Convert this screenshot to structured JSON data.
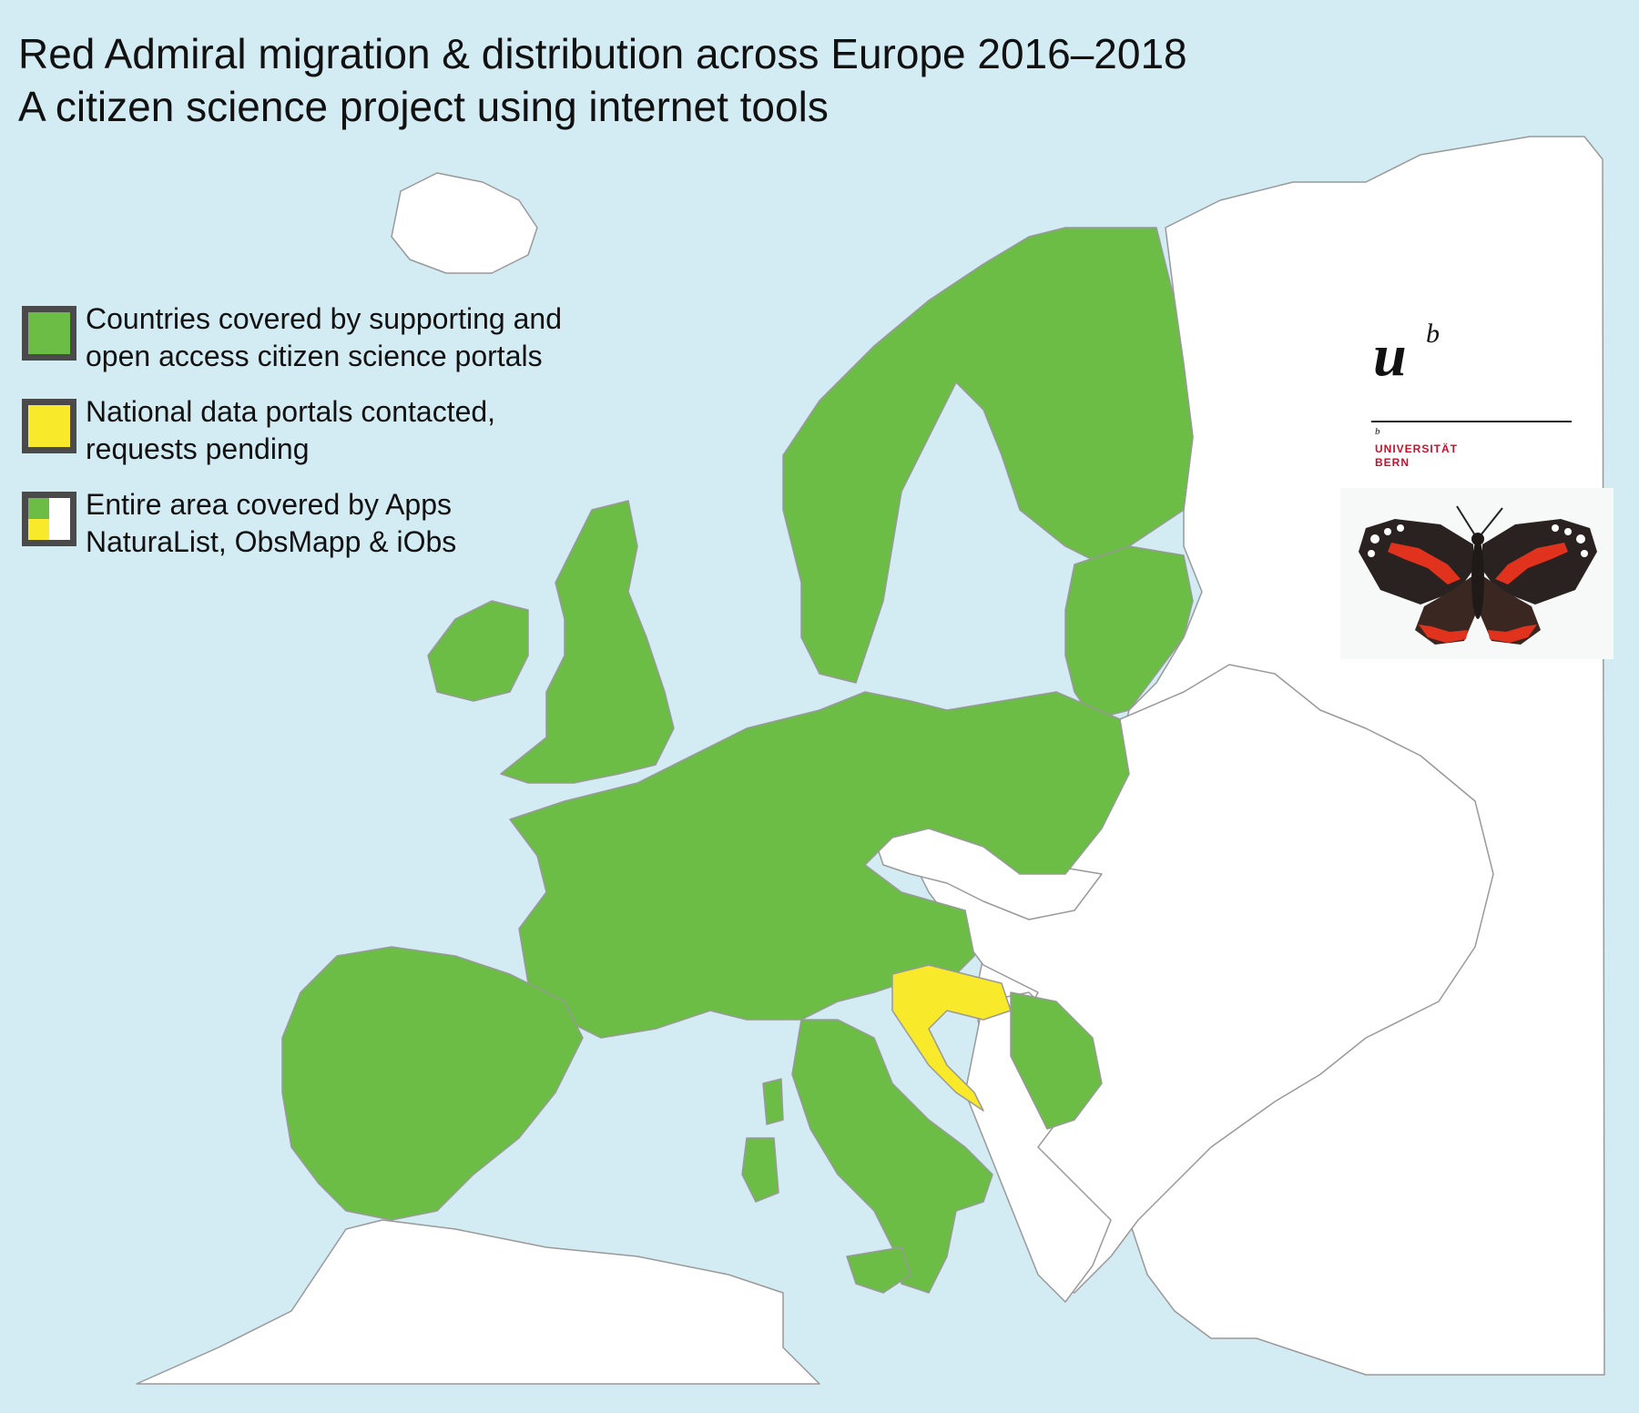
{
  "title": {
    "line1": "Red Admiral migration & distribution across Europe 2016–2018",
    "line2": "A citizen science project using internet tools"
  },
  "legend": [
    {
      "swatch": "green",
      "line1": "Countries covered by supporting and",
      "line2": "open access citizen science portals"
    },
    {
      "swatch": "yellow",
      "line1": "National data portals contacted,",
      "line2": "requests pending"
    },
    {
      "swatch": "mixed",
      "line1": "Entire area covered by Apps",
      "line2": "NaturaList, ObsMapp & iObs"
    }
  ],
  "logo": {
    "letter": "u",
    "superscript": "b",
    "small_b": "b",
    "name_line1": "UNIVERSITÄT",
    "name_line2": "BERN"
  },
  "colors": {
    "sea": "#d3ebf3",
    "covered": "#6bbd45",
    "pending": "#f8e92a",
    "other_land": "#ffffff",
    "border": "#9a9a9a",
    "logo_red": "#c8102e"
  },
  "icons": [
    "butterfly-image",
    "university-bern-logo"
  ]
}
